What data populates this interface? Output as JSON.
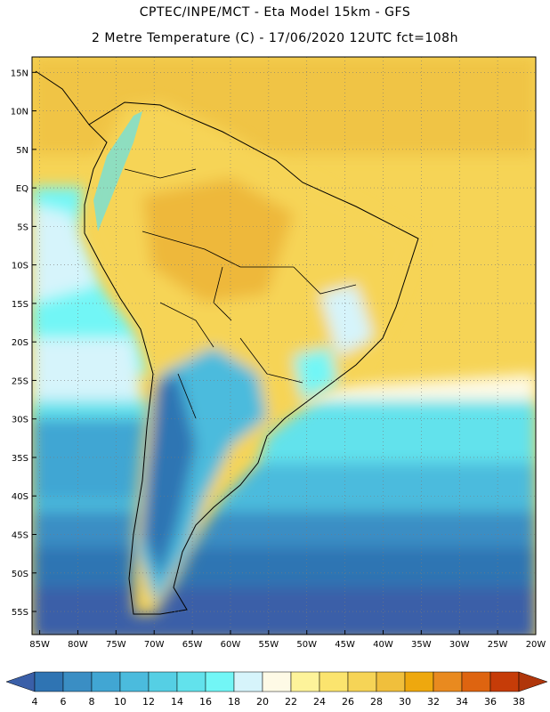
{
  "header": {
    "line1": "CPTEC/INPE/MCT -  Eta Model 15km - GFS",
    "line2": "2 Metre Temperature (C) - 17/06/2020 12UTC fct=108h"
  },
  "map": {
    "lat_labels": [
      "15N",
      "10N",
      "5N",
      "EQ",
      "5S",
      "10S",
      "15S",
      "20S",
      "25S",
      "30S",
      "35S",
      "40S",
      "45S",
      "50S",
      "55S"
    ],
    "lon_labels": [
      "85W",
      "80W",
      "75W",
      "70W",
      "65W",
      "60W",
      "55W",
      "50W",
      "45W",
      "40W",
      "35W",
      "30W",
      "25W",
      "20W"
    ],
    "lat_range": [
      17,
      -58
    ],
    "lon_range": [
      -86,
      -20
    ]
  },
  "colorbar": {
    "ticks": [
      "4",
      "6",
      "8",
      "10",
      "12",
      "14",
      "16",
      "18",
      "20",
      "22",
      "24",
      "26",
      "28",
      "30",
      "32",
      "34",
      "36",
      "38"
    ],
    "colors": [
      "#3a5fa8",
      "#2f74b3",
      "#3a8ec4",
      "#41a6d3",
      "#4bbbdd",
      "#55cfe4",
      "#62e2ec",
      "#72f6f6",
      "#d6f4fb",
      "#fefae6",
      "#fdf39a",
      "#fbe46e",
      "#f6d456",
      "#f0bf3c",
      "#eea80e",
      "#e98a1f",
      "#de6410",
      "#c63c08",
      "#b0360a"
    ]
  }
}
